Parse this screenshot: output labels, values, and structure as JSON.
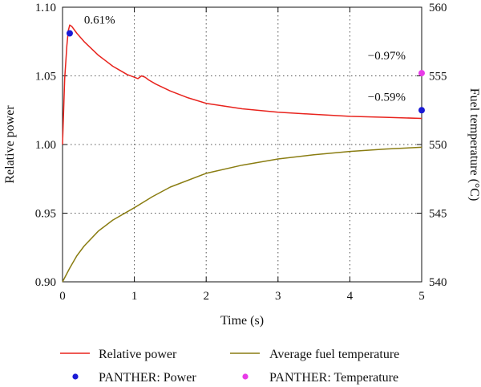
{
  "chart_data": {
    "type": "line",
    "xlabel": "Time (s)",
    "ylabel_left": "Relative power",
    "ylabel_right": "Fuel temperature (°C)",
    "xlim": [
      0,
      5
    ],
    "ylim_left": [
      0.9,
      1.1
    ],
    "ylim_right": [
      540,
      560
    ],
    "x_ticks": [
      "0",
      "1",
      "2",
      "3",
      "4",
      "5"
    ],
    "y_ticks_left": [
      "0.90",
      "0.95",
      "1.00",
      "1.05",
      "1.10"
    ],
    "y_ticks_right": [
      "540",
      "545",
      "550",
      "555",
      "560"
    ],
    "grid": true,
    "legend_position": "below",
    "series": [
      {
        "name": "Relative power",
        "axis": "left",
        "color": "#e8231d",
        "x": [
          0,
          0.03,
          0.06,
          0.08,
          0.1,
          0.13,
          0.2,
          0.3,
          0.4,
          0.5,
          0.6,
          0.7,
          0.8,
          0.9,
          1.0,
          1.05,
          1.1,
          1.15,
          1.2,
          1.3,
          1.5,
          1.75,
          2.0,
          2.5,
          3.0,
          3.5,
          4.0,
          4.5,
          5.0
        ],
        "y": [
          1.0,
          1.048,
          1.072,
          1.083,
          1.087,
          1.086,
          1.081,
          1.075,
          1.07,
          1.065,
          1.061,
          1.057,
          1.054,
          1.051,
          1.049,
          1.048,
          1.05,
          1.049,
          1.047,
          1.044,
          1.039,
          1.034,
          1.03,
          1.026,
          1.0235,
          1.022,
          1.0205,
          1.0198,
          1.019
        ]
      },
      {
        "name": "Average fuel temperature",
        "axis": "right",
        "color": "#8a7d12",
        "x": [
          0,
          0.1,
          0.2,
          0.3,
          0.5,
          0.7,
          1.0,
          1.25,
          1.5,
          2.0,
          2.5,
          3.0,
          3.5,
          4.0,
          4.5,
          5.0
        ],
        "y": [
          540.0,
          541.0,
          541.9,
          542.6,
          543.7,
          544.5,
          545.4,
          546.2,
          546.9,
          547.9,
          548.5,
          548.95,
          549.25,
          549.5,
          549.67,
          549.8
        ]
      },
      {
        "name": "PANTHER: Power",
        "axis": "left",
        "type": "scatter",
        "color": "#1a1ad6",
        "x": [
          0.1,
          5.0
        ],
        "y": [
          1.081,
          1.025
        ]
      },
      {
        "name": "PANTHER: Temperature",
        "axis": "right",
        "type": "scatter",
        "color": "#e83be8",
        "x": [
          5.0
        ],
        "y": [
          555.2
        ]
      }
    ],
    "annotations": [
      {
        "text": "0.61%",
        "x": 0.3,
        "axis": "left",
        "y": 1.088
      },
      {
        "text": "−0.97%",
        "x": 4.25,
        "axis": "left",
        "y": 1.062
      },
      {
        "text": "−0.59%",
        "x": 4.25,
        "axis": "left",
        "y": 1.032
      }
    ]
  }
}
